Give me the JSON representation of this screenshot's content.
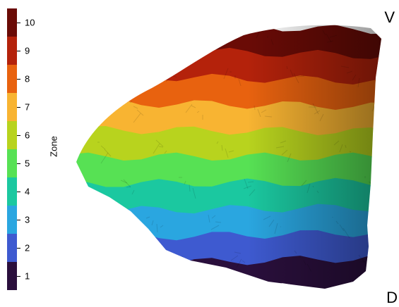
{
  "colorbar": {
    "title": "Zone",
    "levels": [
      {
        "label": "10",
        "color": "#6a0b06"
      },
      {
        "label": "9",
        "color": "#b4220b"
      },
      {
        "label": "8",
        "color": "#e8620f"
      },
      {
        "label": "7",
        "color": "#f8b432"
      },
      {
        "label": "6",
        "color": "#b8d31e"
      },
      {
        "label": "5",
        "color": "#57e154"
      },
      {
        "label": "4",
        "color": "#1bc8a0"
      },
      {
        "label": "3",
        "color": "#2aa6e0"
      },
      {
        "label": "2",
        "color": "#3e5ad0"
      },
      {
        "label": "1",
        "color": "#2a0f3c"
      }
    ]
  },
  "orientation": {
    "top_label": "V",
    "bottom_label": "D"
  }
}
